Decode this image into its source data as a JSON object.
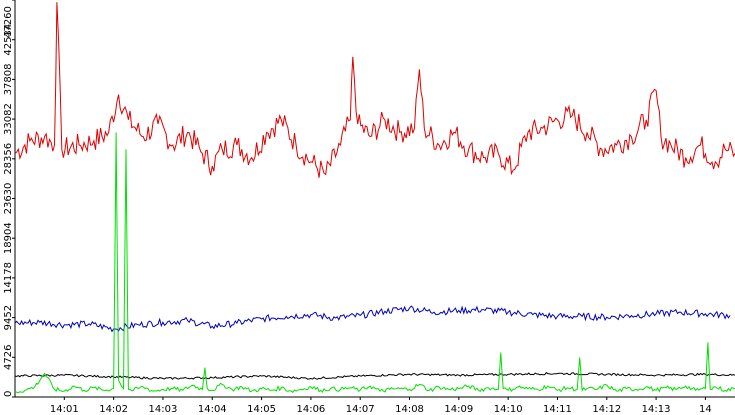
{
  "chart_data": {
    "type": "line",
    "title": "",
    "xlabel": "",
    "ylabel": "",
    "ylim": [
      0,
      47260
    ],
    "y_ticks": [
      0,
      4726,
      9452,
      14178,
      18904,
      23630,
      28356,
      33082,
      37808,
      42534,
      47260
    ],
    "y_tick_labels": [
      "0",
      "4726",
      "9452",
      "14178",
      "18904",
      "23630",
      "28356",
      "33082",
      "37808",
      "42534",
      "47260"
    ],
    "x_range_minutes": [
      0,
      14.6
    ],
    "x_ticks_minutes": [
      1,
      2,
      3,
      4,
      5,
      6,
      7,
      8,
      9,
      10,
      11,
      12,
      13,
      14
    ],
    "x_tick_labels": [
      "14:01",
      "14:02",
      "14:03",
      "14:04",
      "14:05",
      "14:06",
      "14:07",
      "14:08",
      "14:09",
      "14:10",
      "14:11",
      "14:12",
      "14:13",
      "14"
    ],
    "grid": false,
    "legend": "none",
    "series": [
      {
        "color": "#e00000",
        "x": [
          0,
          0.3,
          0.6,
          0.8,
          0.85,
          0.95,
          1.3,
          1.6,
          1.9,
          2.1,
          2.3,
          2.6,
          2.9,
          3.2,
          3.5,
          3.8,
          4.0,
          4.2,
          4.5,
          4.8,
          5.1,
          5.4,
          5.7,
          6.0,
          6.3,
          6.6,
          6.8,
          6.85,
          6.95,
          7.2,
          7.5,
          7.8,
          8.1,
          8.2,
          8.3,
          8.6,
          8.9,
          9.2,
          9.5,
          9.8,
          10.1,
          10.4,
          10.7,
          11.0,
          11.3,
          11.6,
          11.9,
          12.2,
          12.5,
          12.8,
          13.0,
          13.1,
          13.3,
          13.6,
          13.9,
          14.2,
          14.4,
          14.6
        ],
        "y": [
          29000,
          30500,
          31000,
          30000,
          47000,
          29500,
          30000,
          30500,
          31500,
          36000,
          33000,
          31000,
          32500,
          30000,
          31500,
          29000,
          27500,
          29500,
          30000,
          28500,
          31500,
          33000,
          30000,
          28000,
          26500,
          30000,
          33000,
          40500,
          32500,
          31000,
          33000,
          31500,
          32000,
          39000,
          32000,
          30000,
          31500,
          29500,
          28500,
          29000,
          27000,
          31500,
          32000,
          33000,
          33500,
          31500,
          29500,
          30000,
          31000,
          33000,
          36500,
          31000,
          30000,
          28500,
          30000,
          28000,
          29500,
          29000
        ]
      },
      {
        "color": "#0000c0",
        "x": [
          0,
          0.5,
          1.0,
          1.5,
          2.0,
          2.5,
          3.0,
          3.5,
          4.0,
          4.5,
          5.0,
          5.5,
          6.0,
          6.5,
          7.0,
          7.5,
          8.0,
          8.5,
          9.0,
          9.5,
          10.0,
          10.5,
          11.0,
          11.5,
          12.0,
          12.5,
          13.0,
          13.5,
          14.0,
          14.5
        ],
        "y": [
          8800,
          8900,
          8600,
          8700,
          8100,
          8600,
          8900,
          9100,
          8400,
          8800,
          9300,
          9600,
          9800,
          9400,
          9700,
          10200,
          10600,
          10100,
          10300,
          10400,
          10100,
          9800,
          9600,
          9600,
          9500,
          9700,
          9900,
          10100,
          9900,
          9700
        ]
      },
      {
        "color": "#000000",
        "x": [
          0,
          1,
          2,
          3,
          4,
          5,
          6,
          7,
          8,
          9,
          10,
          11,
          12,
          13,
          14,
          14.6
        ],
        "y": [
          2500,
          2600,
          2400,
          2200,
          2300,
          2500,
          2200,
          2500,
          2700,
          2600,
          2700,
          2800,
          2700,
          2600,
          2700,
          2600
        ]
      },
      {
        "color": "#00e000",
        "x": [
          0,
          0.2,
          0.4,
          0.6,
          0.8,
          1.0,
          1.2,
          1.4,
          1.6,
          1.8,
          2.0,
          2.05,
          2.1,
          2.2,
          2.25,
          2.3,
          2.4,
          2.6,
          2.8,
          3.0,
          3.2,
          3.4,
          3.6,
          3.8,
          3.85,
          3.9,
          4.0,
          4.2,
          4.4,
          4.6,
          4.8,
          5.0,
          5.2,
          5.4,
          5.6,
          5.8,
          6.0,
          6.2,
          6.4,
          6.6,
          6.8,
          7.0,
          7.2,
          7.4,
          7.6,
          7.8,
          8.0,
          8.2,
          8.4,
          8.6,
          8.8,
          9.0,
          9.2,
          9.4,
          9.6,
          9.8,
          9.85,
          9.9,
          10.0,
          10.2,
          10.4,
          10.6,
          10.8,
          11.0,
          11.2,
          11.4,
          11.45,
          11.5,
          11.6,
          11.8,
          12.0,
          12.2,
          12.4,
          12.6,
          12.8,
          13.0,
          13.2,
          13.4,
          13.6,
          13.8,
          14.0,
          14.05,
          14.1,
          14.2,
          14.4,
          14.6
        ],
        "y": [
          600,
          800,
          1200,
          2800,
          900,
          700,
          1300,
          800,
          1100,
          800,
          1000,
          31500,
          2000,
          1000,
          29500,
          900,
          800,
          1200,
          700,
          900,
          1000,
          800,
          1400,
          900,
          3500,
          1000,
          800,
          1500,
          900,
          1200,
          700,
          1000,
          800,
          1100,
          700,
          900,
          1200,
          800,
          1000,
          900,
          1100,
          800,
          1300,
          700,
          900,
          1000,
          900,
          1500,
          800,
          1200,
          900,
          1000,
          1300,
          800,
          1100,
          900,
          5300,
          1000,
          800,
          1200,
          1000,
          900,
          1300,
          800,
          1100,
          900,
          4700,
          800,
          1000,
          900,
          1400,
          700,
          1000,
          900,
          1200,
          800,
          1100,
          900,
          1300,
          800,
          1000,
          6500,
          900,
          1200,
          800,
          1000
        ]
      }
    ]
  }
}
